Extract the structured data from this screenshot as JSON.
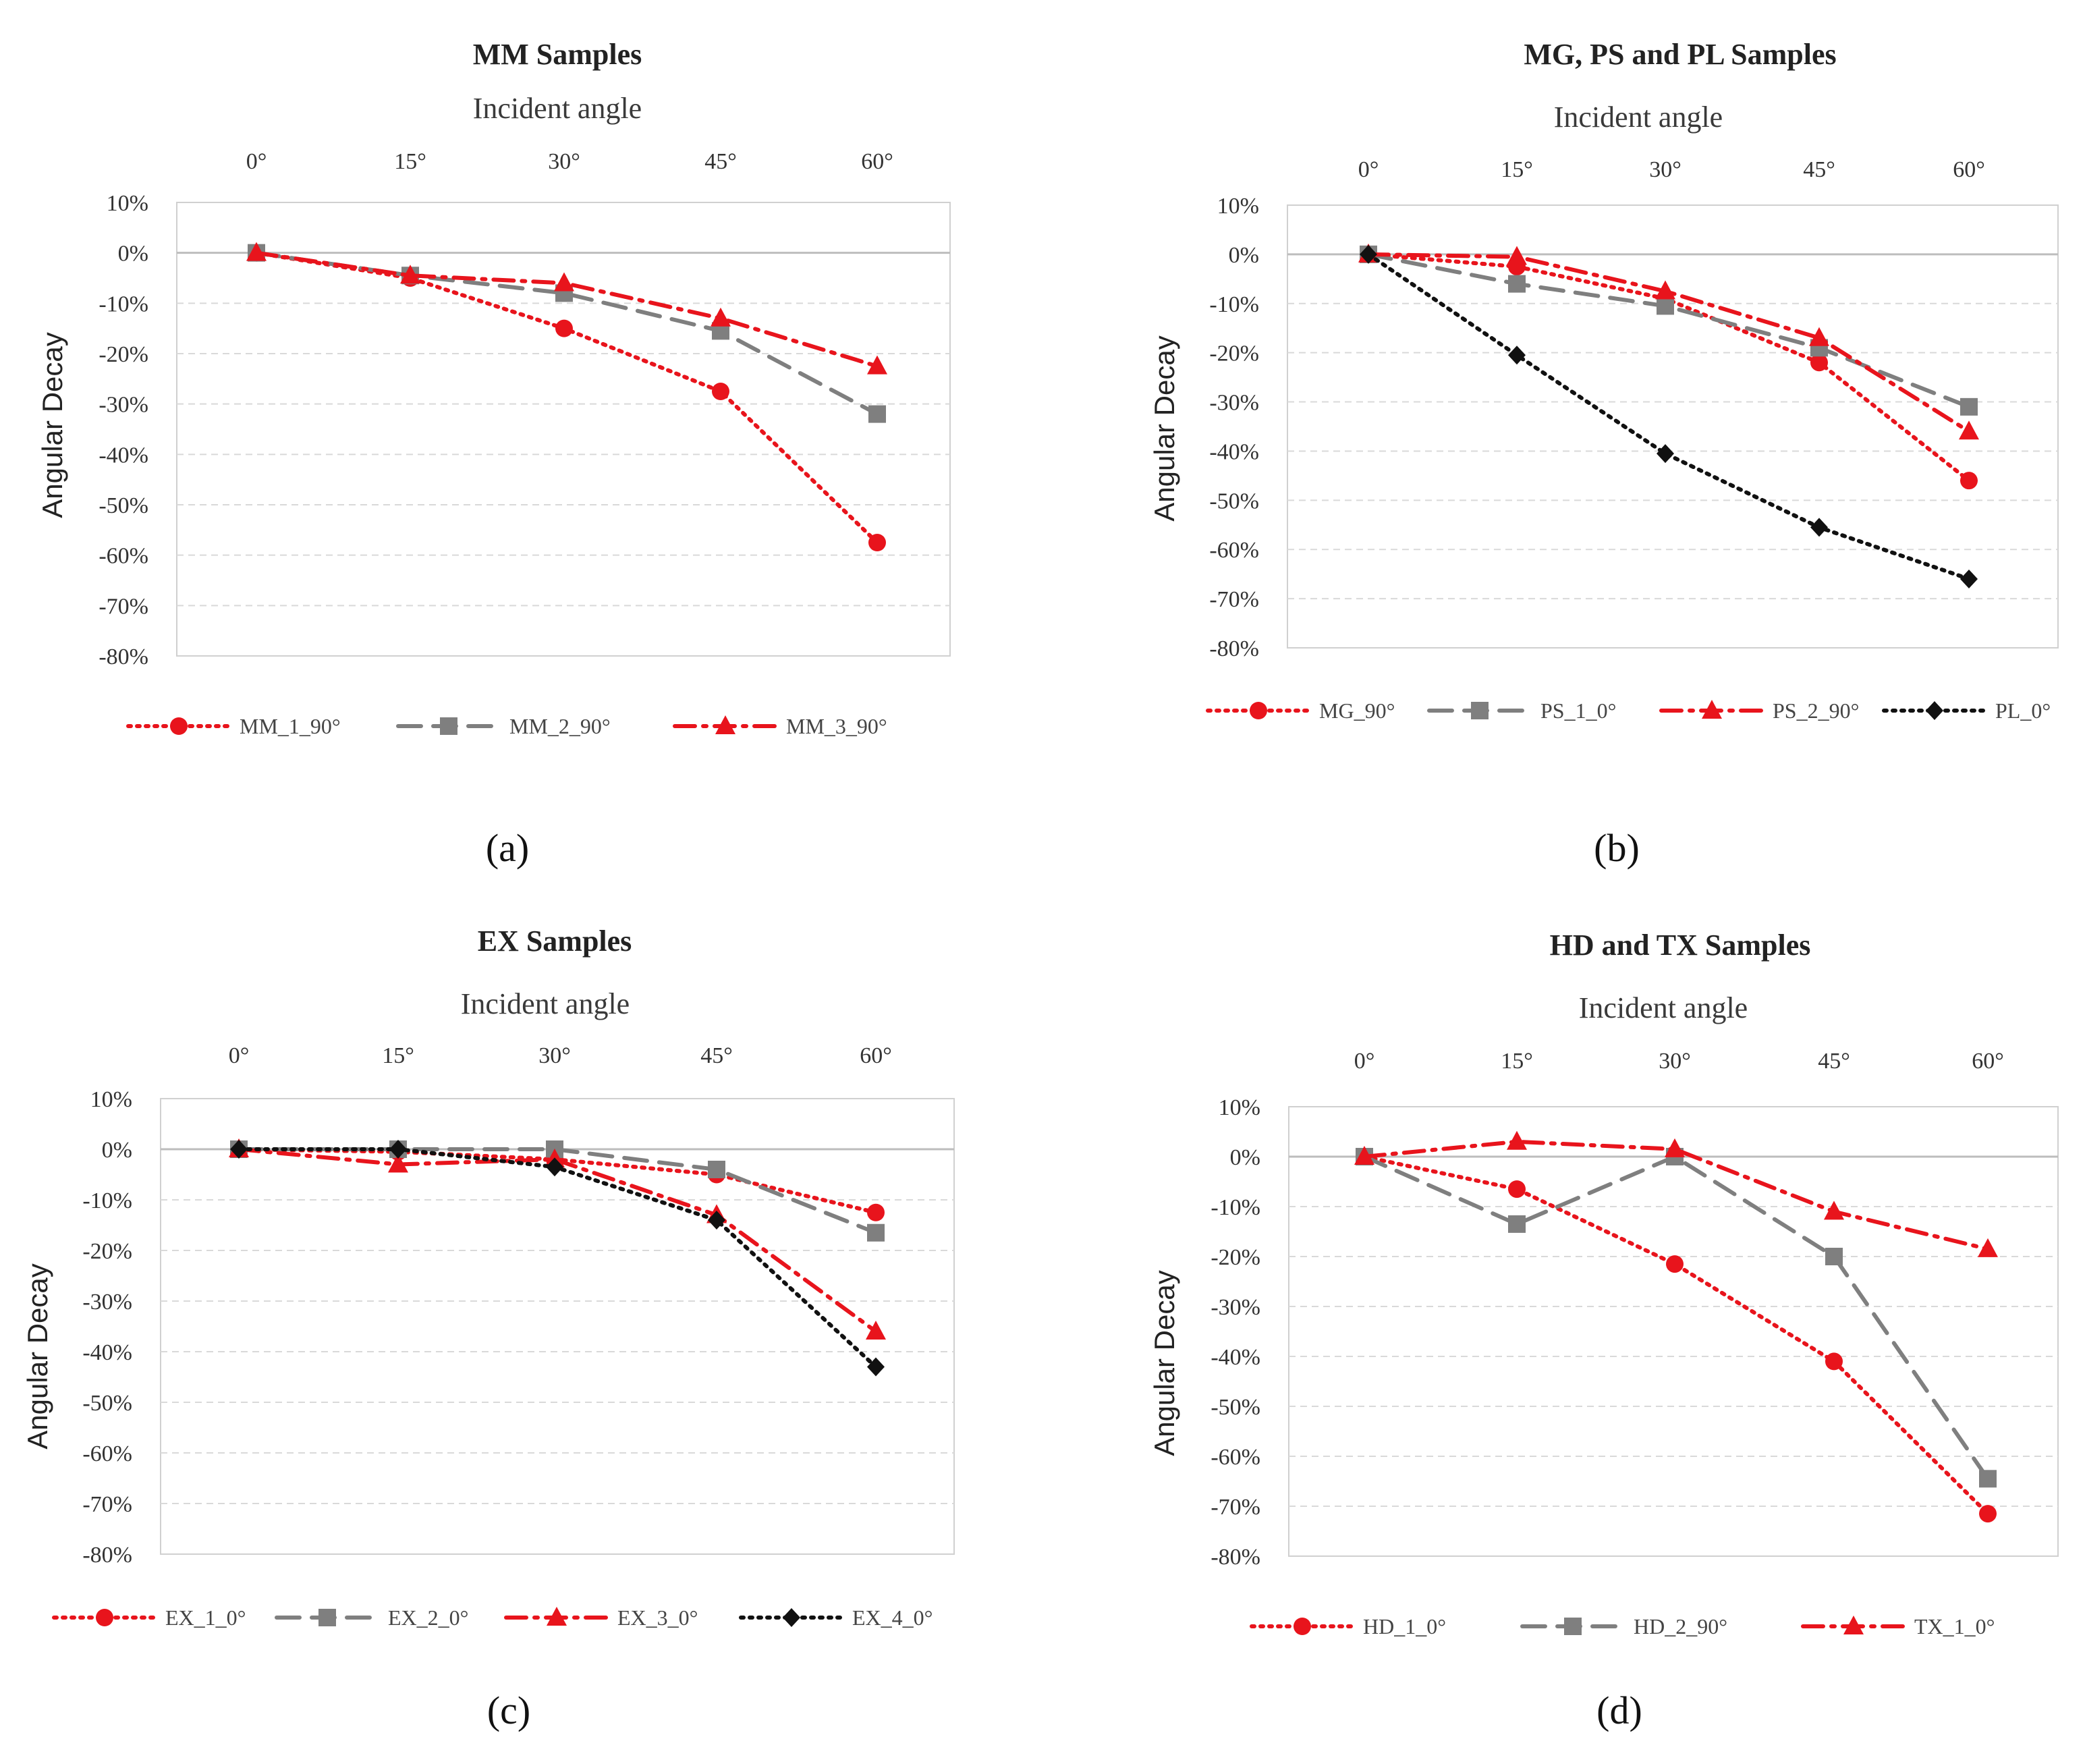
{
  "chart_data": [
    {
      "type": "line",
      "title": "MM Samples",
      "xlabel": "Incident angle",
      "ylabel": "Angular Decay",
      "categories": [
        "0°",
        "15°",
        "30°",
        "45°",
        "60°"
      ],
      "yticks": [
        "10%",
        "0%",
        "-10%",
        "-20%",
        "-30%",
        "-40%",
        "-50%",
        "-60%",
        "-70%",
        "-80%"
      ],
      "ylim": [
        -80,
        10
      ],
      "grid": true,
      "legend": "bottom",
      "panel_label": "(a)",
      "series": [
        {
          "name": "MM_1_90°",
          "values": [
            0,
            -5,
            -15,
            -27.5,
            -57.5
          ],
          "color": "#e8141c",
          "dash": "dotted",
          "marker": "circle"
        },
        {
          "name": "MM_2_90°",
          "values": [
            0,
            -4.5,
            -8,
            -15.5,
            -32
          ],
          "color": "#7f7f7f",
          "dash": "dashed",
          "marker": "square"
        },
        {
          "name": "MM_3_90°",
          "values": [
            0,
            -4.5,
            -6,
            -13,
            -22.5
          ],
          "color": "#e8141c",
          "dash": "dashdot",
          "marker": "triangle"
        }
      ]
    },
    {
      "type": "line",
      "title": "MG, PS and PL Samples",
      "xlabel": "Incident angle",
      "ylabel": "Angular Decay",
      "categories": [
        "0°",
        "15°",
        "30°",
        "45°",
        "60°"
      ],
      "yticks": [
        "10%",
        "0%",
        "-10%",
        "-20%",
        "-30%",
        "-40%",
        "-50%",
        "-60%",
        "-70%",
        "-80%"
      ],
      "ylim": [
        -80,
        10
      ],
      "grid": true,
      "legend": "bottom",
      "panel_label": "(b)",
      "series": [
        {
          "name": "MG_90°",
          "values": [
            0,
            -2.5,
            -9,
            -22,
            -46
          ],
          "color": "#e8141c",
          "dash": "dotted",
          "marker": "circle"
        },
        {
          "name": "PS_1_0°",
          "values": [
            0,
            -6,
            -10.5,
            -19,
            -31
          ],
          "color": "#7f7f7f",
          "dash": "dashed",
          "marker": "square"
        },
        {
          "name": "PS_2_90°",
          "values": [
            0,
            -0.5,
            -7.5,
            -17,
            -36
          ],
          "color": "#e8141c",
          "dash": "dashdot",
          "marker": "triangle"
        },
        {
          "name": "PL_0°",
          "values": [
            0,
            -20.5,
            -40.5,
            -55.5,
            -66
          ],
          "color": "#111111",
          "dash": "dotted",
          "marker": "diamond"
        }
      ]
    },
    {
      "type": "line",
      "title": "EX Samples",
      "xlabel": "Incident angle",
      "ylabel": "Angular Decay",
      "categories": [
        "0°",
        "15°",
        "30°",
        "45°",
        "60°"
      ],
      "yticks": [
        "10%",
        "0%",
        "-10%",
        "-20%",
        "-30%",
        "-40%",
        "-50%",
        "-60%",
        "-70%",
        "-80%"
      ],
      "ylim": [
        -80,
        10
      ],
      "grid": true,
      "legend": "bottom",
      "panel_label": "(c)",
      "series": [
        {
          "name": "EX_1_0°",
          "values": [
            0,
            -0.5,
            -2,
            -5,
            -12.5
          ],
          "color": "#e8141c",
          "dash": "dotted",
          "marker": "circle"
        },
        {
          "name": "EX_2_0°",
          "values": [
            0,
            0,
            0,
            -4,
            -16.5
          ],
          "color": "#7f7f7f",
          "dash": "dashed",
          "marker": "square"
        },
        {
          "name": "EX_3_0°",
          "values": [
            0,
            -3,
            -2,
            -13,
            -36
          ],
          "color": "#e8141c",
          "dash": "dashdot",
          "marker": "triangle"
        },
        {
          "name": "EX_4_0°",
          "values": [
            0,
            0,
            -3.5,
            -14,
            -43
          ],
          "color": "#111111",
          "dash": "dotted",
          "marker": "diamond"
        }
      ]
    },
    {
      "type": "line",
      "title": "HD and TX Samples",
      "xlabel": "Incident angle",
      "ylabel": "Angular Decay",
      "categories": [
        "0°",
        "15°",
        "30°",
        "45°",
        "60°"
      ],
      "yticks": [
        "10%",
        "0%",
        "-10%",
        "-20%",
        "-30%",
        "-40%",
        "-50%",
        "-60%",
        "-70%",
        "-80%"
      ],
      "ylim": [
        -80,
        10
      ],
      "grid": true,
      "legend": "bottom",
      "panel_label": "(d)",
      "series": [
        {
          "name": "HD_1_0°",
          "values": [
            0,
            -6.5,
            -21.5,
            -41,
            -71.5
          ],
          "color": "#e8141c",
          "dash": "dotted",
          "marker": "circle"
        },
        {
          "name": "HD_2_90°",
          "values": [
            0,
            -13.5,
            0,
            -20,
            -64.5
          ],
          "color": "#7f7f7f",
          "dash": "dashed",
          "marker": "square"
        },
        {
          "name": "TX_1_0°",
          "values": [
            0,
            3,
            1.5,
            -11,
            -18.5
          ],
          "color": "#e8141c",
          "dash": "dashdot",
          "marker": "triangle"
        }
      ]
    }
  ]
}
